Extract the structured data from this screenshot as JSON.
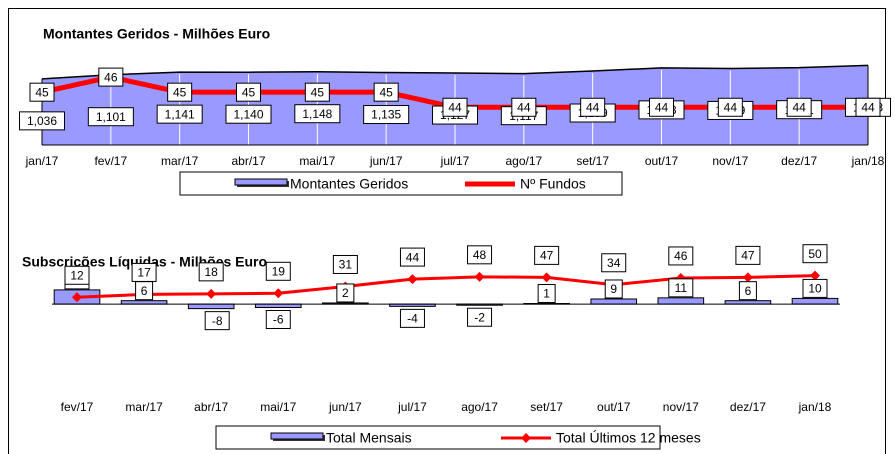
{
  "chart_data": [
    {
      "type": "combo",
      "title": "Montantes Geridos - Milhões Euro",
      "categories": [
        "jan/17",
        "fev/17",
        "mar/17",
        "abr/17",
        "mai/17",
        "jun/17",
        "jul/17",
        "ago/17",
        "set/17",
        "out/17",
        "nov/17",
        "dez/17",
        "jan/18"
      ],
      "ylim": [
        0,
        1300
      ],
      "y2lim": [
        41.5,
        47
      ],
      "legend": "bottom",
      "grid": true,
      "series": [
        {
          "name": "Montantes Geridos",
          "kind": "area",
          "color": "#9999ff",
          "values": [
            1036,
            1101,
            1141,
            1140,
            1148,
            1135,
            1127,
            1117,
            1159,
            1208,
            1199,
            1211,
            1248
          ],
          "value_labels": [
            "1,036",
            "1,101",
            "1,141",
            "1,140",
            "1,148",
            "1,135",
            "1,127",
            "1,117",
            "1,159",
            "1,208",
            "1,199",
            "1,211",
            "1,248"
          ]
        },
        {
          "name": "Nº Fundos",
          "kind": "line",
          "axis": "y2",
          "color": "#ff0000",
          "values": [
            45,
            46,
            45,
            45,
            45,
            45,
            44,
            44,
            44,
            44,
            44,
            44,
            44
          ]
        }
      ]
    },
    {
      "type": "combo",
      "title": "Subscrições Líquidas - Milhões Euro",
      "categories": [
        "fev/17",
        "mar/17",
        "abr/17",
        "mai/17",
        "jun/17",
        "jul/17",
        "ago/17",
        "set/17",
        "out/17",
        "nov/17",
        "dez/17",
        "jan/18"
      ],
      "ylim": [
        -160,
        60
      ],
      "legend": "bottom",
      "series": [
        {
          "name": "Total Mensais",
          "kind": "bar",
          "color": "#9999ff",
          "values": [
            25,
            6,
            -8,
            -6,
            2,
            -4,
            -2,
            1,
            9,
            11,
            6,
            10
          ]
        },
        {
          "name": "Total Últimos 12 meses",
          "kind": "line",
          "color": "#ff0000",
          "values": [
            12,
            17,
            18,
            19,
            31,
            44,
            48,
            47,
            34,
            46,
            47,
            50
          ]
        }
      ]
    }
  ]
}
